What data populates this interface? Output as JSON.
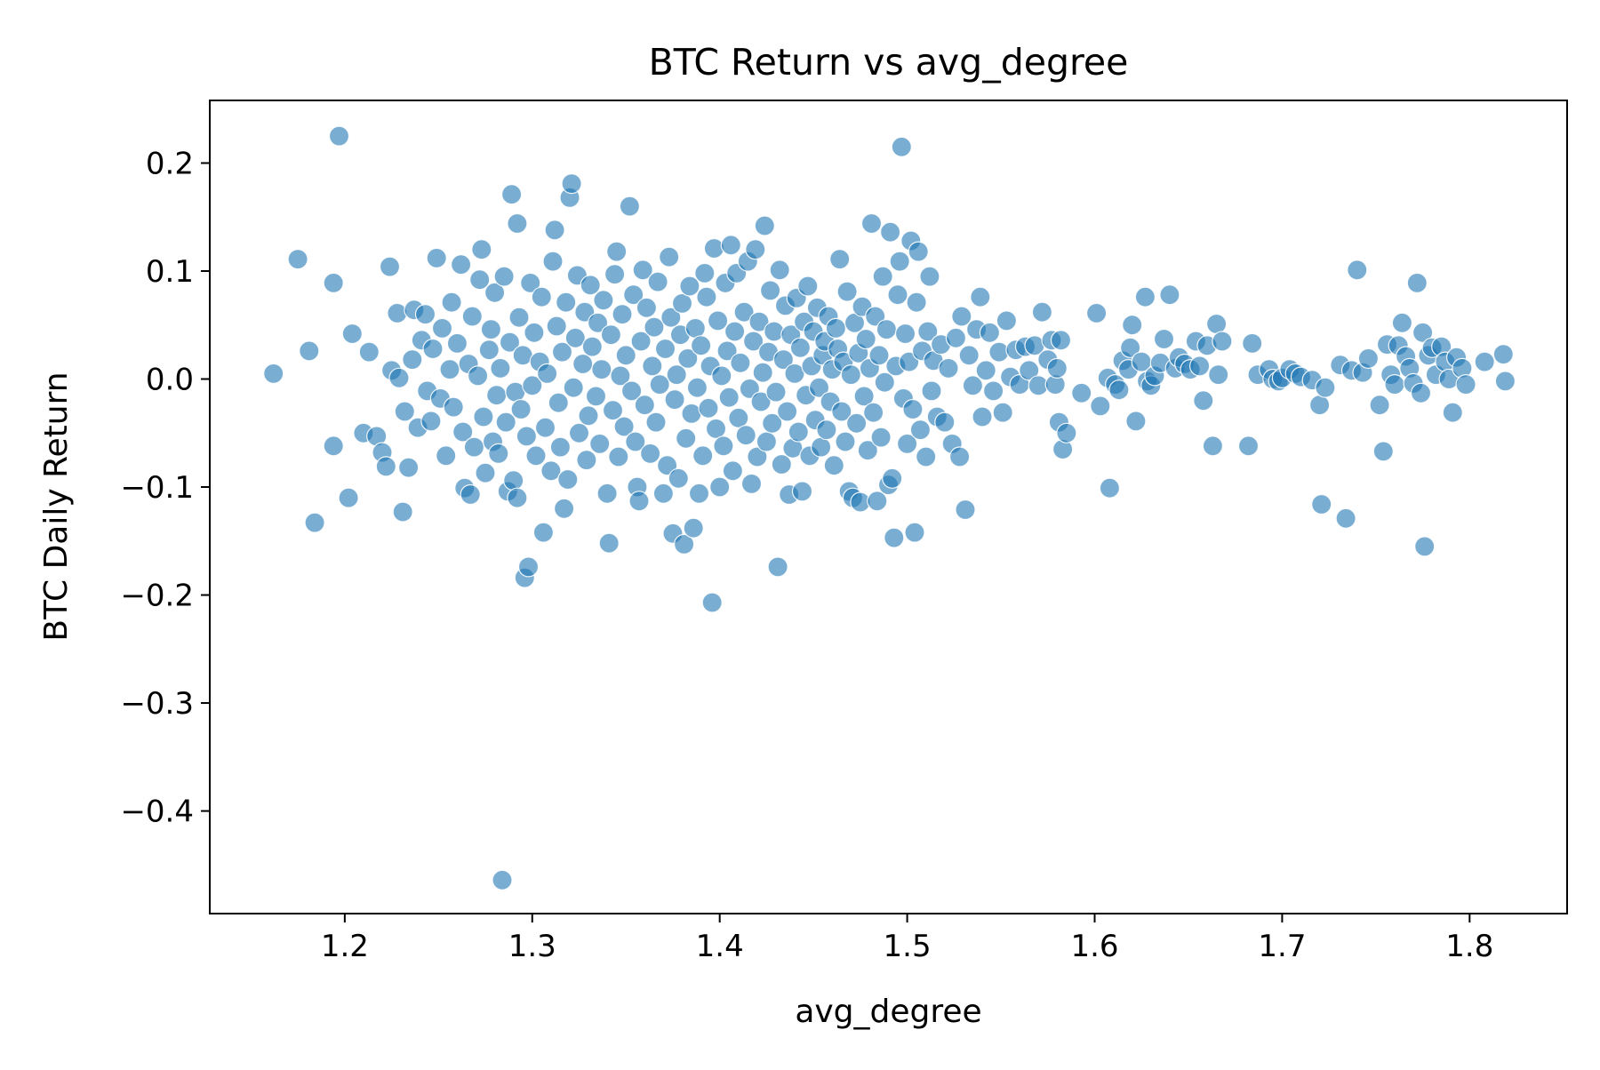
{
  "chart_data": {
    "type": "scatter",
    "title": "BTC Return vs avg_degree",
    "xlabel": "avg_degree",
    "ylabel": "BTC Daily Return",
    "xlim": [
      1.128,
      1.852
    ],
    "ylim": [
      -0.495,
      0.258
    ],
    "x_ticks": [
      {
        "value": 1.2,
        "label": "1.2"
      },
      {
        "value": 1.3,
        "label": "1.3"
      },
      {
        "value": 1.4,
        "label": "1.4"
      },
      {
        "value": 1.5,
        "label": "1.5"
      },
      {
        "value": 1.6,
        "label": "1.6"
      },
      {
        "value": 1.7,
        "label": "1.7"
      },
      {
        "value": 1.8,
        "label": "1.8"
      }
    ],
    "y_ticks": [
      {
        "value": 0.2,
        "label": "0.2"
      },
      {
        "value": 0.1,
        "label": "0.1"
      },
      {
        "value": 0.0,
        "label": "0.0"
      },
      {
        "value": -0.1,
        "label": "−0.1"
      },
      {
        "value": -0.2,
        "label": "−0.2"
      },
      {
        "value": -0.3,
        "label": "−0.3"
      },
      {
        "value": -0.4,
        "label": "−0.4"
      }
    ],
    "grid": false,
    "legend": "none",
    "marker_color": "#1f77b4",
    "marker_alpha": 0.6,
    "marker_edge_color": "#ffffff",
    "points": [
      [
        1.162,
        0.005
      ],
      [
        1.175,
        0.111
      ],
      [
        1.181,
        0.026
      ],
      [
        1.184,
        -0.133
      ],
      [
        1.194,
        0.089
      ],
      [
        1.194,
        -0.062
      ],
      [
        1.197,
        0.225
      ],
      [
        1.202,
        -0.11
      ],
      [
        1.204,
        0.042
      ],
      [
        1.21,
        -0.05
      ],
      [
        1.213,
        0.025
      ],
      [
        1.217,
        -0.053
      ],
      [
        1.22,
        -0.068
      ],
      [
        1.222,
        -0.081
      ],
      [
        1.224,
        0.104
      ],
      [
        1.225,
        0.008
      ],
      [
        1.228,
        0.061
      ],
      [
        1.229,
        0.001
      ],
      [
        1.231,
        -0.123
      ],
      [
        1.232,
        -0.03
      ],
      [
        1.234,
        -0.082
      ],
      [
        1.236,
        0.018
      ],
      [
        1.237,
        0.064
      ],
      [
        1.239,
        -0.045
      ],
      [
        1.241,
        0.036
      ],
      [
        1.243,
        0.06
      ],
      [
        1.244,
        -0.011
      ],
      [
        1.246,
        -0.039
      ],
      [
        1.247,
        0.028
      ],
      [
        1.249,
        0.112
      ],
      [
        1.251,
        -0.018
      ],
      [
        1.252,
        0.047
      ],
      [
        1.254,
        -0.071
      ],
      [
        1.256,
        0.009
      ],
      [
        1.257,
        0.071
      ],
      [
        1.258,
        -0.026
      ],
      [
        1.26,
        0.033
      ],
      [
        1.262,
        0.106
      ],
      [
        1.263,
        -0.049
      ],
      [
        1.264,
        -0.101
      ],
      [
        1.266,
        0.014
      ],
      [
        1.267,
        -0.107
      ],
      [
        1.268,
        0.058
      ],
      [
        1.269,
        -0.063
      ],
      [
        1.271,
        0.003
      ],
      [
        1.272,
        0.092
      ],
      [
        1.273,
        0.12
      ],
      [
        1.274,
        -0.035
      ],
      [
        1.275,
        -0.087
      ],
      [
        1.277,
        0.027
      ],
      [
        1.278,
        0.046
      ],
      [
        1.279,
        -0.058
      ],
      [
        1.28,
        0.08
      ],
      [
        1.281,
        -0.015
      ],
      [
        1.282,
        -0.069
      ],
      [
        1.283,
        0.01
      ],
      [
        1.284,
        -0.464
      ],
      [
        1.285,
        0.095
      ],
      [
        1.286,
        -0.04
      ],
      [
        1.287,
        -0.104
      ],
      [
        1.288,
        0.034
      ],
      [
        1.289,
        0.171
      ],
      [
        1.29,
        -0.094
      ],
      [
        1.291,
        -0.012
      ],
      [
        1.292,
        -0.11
      ],
      [
        1.292,
        0.144
      ],
      [
        1.293,
        0.057
      ],
      [
        1.294,
        -0.028
      ],
      [
        1.295,
        0.022
      ],
      [
        1.296,
        -0.184
      ],
      [
        1.297,
        -0.053
      ],
      [
        1.298,
        -0.174
      ],
      [
        1.299,
        0.089
      ],
      [
        1.3,
        -0.006
      ],
      [
        1.301,
        0.043
      ],
      [
        1.302,
        -0.071
      ],
      [
        1.304,
        0.016
      ],
      [
        1.305,
        0.076
      ],
      [
        1.306,
        -0.142
      ],
      [
        1.307,
        -0.045
      ],
      [
        1.308,
        0.005
      ],
      [
        1.31,
        -0.085
      ],
      [
        1.311,
        0.109
      ],
      [
        1.312,
        0.138
      ],
      [
        1.313,
        0.049
      ],
      [
        1.314,
        -0.022
      ],
      [
        1.315,
        -0.063
      ],
      [
        1.316,
        0.025
      ],
      [
        1.317,
        -0.12
      ],
      [
        1.318,
        0.071
      ],
      [
        1.319,
        -0.093
      ],
      [
        1.32,
        0.168
      ],
      [
        1.321,
        0.181
      ],
      [
        1.322,
        -0.008
      ],
      [
        1.323,
        0.038
      ],
      [
        1.324,
        0.096
      ],
      [
        1.325,
        -0.05
      ],
      [
        1.327,
        0.014
      ],
      [
        1.328,
        0.062
      ],
      [
        1.329,
        -0.075
      ],
      [
        1.33,
        -0.034
      ],
      [
        1.331,
        0.087
      ],
      [
        1.332,
        0.03
      ],
      [
        1.334,
        -0.016
      ],
      [
        1.335,
        0.052
      ],
      [
        1.336,
        -0.06
      ],
      [
        1.337,
        0.009
      ],
      [
        1.338,
        0.073
      ],
      [
        1.34,
        -0.106
      ],
      [
        1.341,
        -0.152
      ],
      [
        1.342,
        0.041
      ],
      [
        1.343,
        -0.029
      ],
      [
        1.344,
        0.097
      ],
      [
        1.345,
        0.118
      ],
      [
        1.346,
        -0.072
      ],
      [
        1.347,
        0.003
      ],
      [
        1.348,
        0.06
      ],
      [
        1.349,
        -0.044
      ],
      [
        1.35,
        0.022
      ],
      [
        1.352,
        0.16
      ],
      [
        1.353,
        -0.011
      ],
      [
        1.354,
        0.078
      ],
      [
        1.355,
        -0.058
      ],
      [
        1.356,
        -0.1
      ],
      [
        1.357,
        -0.113
      ],
      [
        1.358,
        0.035
      ],
      [
        1.359,
        0.101
      ],
      [
        1.36,
        -0.024
      ],
      [
        1.361,
        0.066
      ],
      [
        1.363,
        -0.069
      ],
      [
        1.364,
        0.012
      ],
      [
        1.365,
        0.048
      ],
      [
        1.366,
        -0.04
      ],
      [
        1.367,
        0.09
      ],
      [
        1.368,
        -0.005
      ],
      [
        1.37,
        -0.106
      ],
      [
        1.371,
        0.028
      ],
      [
        1.372,
        -0.08
      ],
      [
        1.373,
        0.113
      ],
      [
        1.374,
        0.057
      ],
      [
        1.375,
        -0.143
      ],
      [
        1.376,
        -0.019
      ],
      [
        1.377,
        0.004
      ],
      [
        1.378,
        -0.092
      ],
      [
        1.379,
        0.041
      ],
      [
        1.38,
        0.07
      ],
      [
        1.381,
        -0.153
      ],
      [
        1.382,
        -0.055
      ],
      [
        1.383,
        0.019
      ],
      [
        1.384,
        0.086
      ],
      [
        1.385,
        -0.032
      ],
      [
        1.386,
        -0.138
      ],
      [
        1.387,
        0.047
      ],
      [
        1.388,
        -0.008
      ],
      [
        1.389,
        -0.106
      ],
      [
        1.39,
        0.031
      ],
      [
        1.391,
        -0.071
      ],
      [
        1.392,
        0.098
      ],
      [
        1.393,
        0.076
      ],
      [
        1.394,
        -0.027
      ],
      [
        1.395,
        0.012
      ],
      [
        1.396,
        -0.207
      ],
      [
        1.397,
        0.121
      ],
      [
        1.398,
        -0.046
      ],
      [
        1.399,
        0.054
      ],
      [
        1.4,
        -0.1
      ],
      [
        1.401,
        0.003
      ],
      [
        1.402,
        -0.062
      ],
      [
        1.403,
        0.089
      ],
      [
        1.404,
        0.026
      ],
      [
        1.405,
        -0.017
      ],
      [
        1.406,
        0.124
      ],
      [
        1.407,
        -0.085
      ],
      [
        1.408,
        0.044
      ],
      [
        1.409,
        0.098
      ],
      [
        1.41,
        -0.036
      ],
      [
        1.411,
        0.015
      ],
      [
        1.413,
        0.062
      ],
      [
        1.414,
        -0.052
      ],
      [
        1.415,
        0.109
      ],
      [
        1.416,
        -0.009
      ],
      [
        1.417,
        -0.097
      ],
      [
        1.418,
        0.035
      ],
      [
        1.419,
        0.12
      ],
      [
        1.42,
        -0.072
      ],
      [
        1.421,
        0.053
      ],
      [
        1.422,
        -0.021
      ],
      [
        1.423,
        0.006
      ],
      [
        1.424,
        0.142
      ],
      [
        1.425,
        -0.058
      ],
      [
        1.426,
        0.025
      ],
      [
        1.427,
        0.082
      ],
      [
        1.428,
        -0.041
      ],
      [
        1.429,
        0.044
      ],
      [
        1.43,
        -0.012
      ],
      [
        1.431,
        -0.174
      ],
      [
        1.432,
        0.101
      ],
      [
        1.433,
        -0.079
      ],
      [
        1.434,
        0.018
      ],
      [
        1.435,
        0.068
      ],
      [
        1.436,
        -0.03
      ],
      [
        1.437,
        -0.107
      ],
      [
        1.438,
        0.041
      ],
      [
        1.439,
        -0.064
      ],
      [
        1.44,
        0.005
      ],
      [
        1.441,
        0.075
      ],
      [
        1.442,
        -0.049
      ],
      [
        1.443,
        0.029
      ],
      [
        1.444,
        -0.104
      ],
      [
        1.445,
        0.053
      ],
      [
        1.446,
        -0.015
      ],
      [
        1.447,
        0.086
      ],
      [
        1.448,
        -0.071
      ],
      [
        1.449,
        0.012
      ],
      [
        1.45,
        0.044
      ],
      [
        1.451,
        -0.038
      ],
      [
        1.452,
        0.066
      ],
      [
        1.453,
        -0.008
      ],
      [
        1.454,
        -0.063
      ],
      [
        1.455,
        0.022
      ],
      [
        1.456,
        0.035
      ],
      [
        1.457,
        -0.047
      ],
      [
        1.458,
        0.058
      ],
      [
        1.459,
        -0.021
      ],
      [
        1.46,
        0.009
      ],
      [
        1.461,
        -0.08
      ],
      [
        1.462,
        0.047
      ],
      [
        1.463,
        0.028
      ],
      [
        1.464,
        0.111
      ],
      [
        1.465,
        -0.03
      ],
      [
        1.466,
        0.016
      ],
      [
        1.467,
        -0.058
      ],
      [
        1.468,
        0.081
      ],
      [
        1.469,
        -0.104
      ],
      [
        1.47,
        0.004
      ],
      [
        1.471,
        -0.11
      ],
      [
        1.472,
        0.052
      ],
      [
        1.473,
        -0.041
      ],
      [
        1.474,
        0.024
      ],
      [
        1.475,
        -0.114
      ],
      [
        1.476,
        0.067
      ],
      [
        1.477,
        -0.016
      ],
      [
        1.478,
        0.037
      ],
      [
        1.479,
        -0.066
      ],
      [
        1.48,
        0.01
      ],
      [
        1.481,
        0.144
      ],
      [
        1.482,
        -0.031
      ],
      [
        1.483,
        0.058
      ],
      [
        1.484,
        -0.113
      ],
      [
        1.485,
        0.022
      ],
      [
        1.486,
        -0.054
      ],
      [
        1.487,
        0.095
      ],
      [
        1.488,
        -0.003
      ],
      [
        1.489,
        0.046
      ],
      [
        1.49,
        -0.098
      ],
      [
        1.491,
        0.136
      ],
      [
        1.492,
        -0.092
      ],
      [
        1.493,
        -0.147
      ],
      [
        1.494,
        0.012
      ],
      [
        1.495,
        0.078
      ],
      [
        1.496,
        0.109
      ],
      [
        1.497,
        0.215
      ],
      [
        1.498,
        -0.018
      ],
      [
        1.499,
        0.042
      ],
      [
        1.5,
        -0.06
      ],
      [
        1.501,
        0.016
      ],
      [
        1.502,
        0.128
      ],
      [
        1.503,
        -0.028
      ],
      [
        1.504,
        -0.142
      ],
      [
        1.505,
        0.071
      ],
      [
        1.506,
        0.118
      ],
      [
        1.507,
        -0.047
      ],
      [
        1.508,
        0.026
      ],
      [
        1.51,
        -0.072
      ],
      [
        1.511,
        0.044
      ],
      [
        1.512,
        0.095
      ],
      [
        1.513,
        -0.011
      ],
      [
        1.514,
        0.017
      ],
      [
        1.516,
        -0.035
      ],
      [
        1.518,
        0.032
      ],
      [
        1.52,
        -0.04
      ],
      [
        1.522,
        0.01
      ],
      [
        1.524,
        -0.06
      ],
      [
        1.526,
        0.038
      ],
      [
        1.528,
        -0.072
      ],
      [
        1.529,
        0.058
      ],
      [
        1.531,
        -0.121
      ],
      [
        1.533,
        0.022
      ],
      [
        1.535,
        -0.006
      ],
      [
        1.537,
        0.046
      ],
      [
        1.539,
        0.076
      ],
      [
        1.54,
        -0.035
      ],
      [
        1.542,
        0.008
      ],
      [
        1.544,
        0.043
      ],
      [
        1.546,
        -0.011
      ],
      [
        1.549,
        0.025
      ],
      [
        1.551,
        -0.031
      ],
      [
        1.553,
        0.054
      ],
      [
        1.555,
        0.002
      ],
      [
        1.558,
        0.027
      ],
      [
        1.56,
        -0.005
      ],
      [
        1.563,
        0.03
      ],
      [
        1.565,
        0.008
      ],
      [
        1.568,
        0.031
      ],
      [
        1.57,
        -0.006
      ],
      [
        1.572,
        0.062
      ],
      [
        1.575,
        0.018
      ],
      [
        1.577,
        0.036
      ],
      [
        1.579,
        -0.005
      ],
      [
        1.58,
        0.01
      ],
      [
        1.581,
        -0.04
      ],
      [
        1.582,
        0.036
      ],
      [
        1.583,
        -0.065
      ],
      [
        1.585,
        -0.05
      ],
      [
        1.593,
        -0.013
      ],
      [
        1.601,
        0.061
      ],
      [
        1.603,
        -0.025
      ],
      [
        1.607,
        0.001
      ],
      [
        1.608,
        -0.101
      ],
      [
        1.611,
        -0.005
      ],
      [
        1.613,
        -0.01
      ],
      [
        1.615,
        0.017
      ],
      [
        1.618,
        0.009
      ],
      [
        1.619,
        0.029
      ],
      [
        1.62,
        0.05
      ],
      [
        1.622,
        -0.039
      ],
      [
        1.625,
        0.016
      ],
      [
        1.627,
        0.076
      ],
      [
        1.628,
        -0.002
      ],
      [
        1.63,
        -0.006
      ],
      [
        1.632,
        0.003
      ],
      [
        1.635,
        0.015
      ],
      [
        1.637,
        0.037
      ],
      [
        1.64,
        0.078
      ],
      [
        1.643,
        0.01
      ],
      [
        1.645,
        0.02
      ],
      [
        1.648,
        0.014
      ],
      [
        1.651,
        0.009
      ],
      [
        1.654,
        0.035
      ],
      [
        1.656,
        0.012
      ],
      [
        1.658,
        -0.02
      ],
      [
        1.66,
        0.031
      ],
      [
        1.663,
        -0.062
      ],
      [
        1.665,
        0.051
      ],
      [
        1.666,
        0.004
      ],
      [
        1.668,
        0.035
      ],
      [
        1.682,
        -0.062
      ],
      [
        1.684,
        0.033
      ],
      [
        1.687,
        0.004
      ],
      [
        1.693,
        0.009
      ],
      [
        1.695,
        0.0
      ],
      [
        1.698,
        -0.002
      ],
      [
        1.7,
        0.001
      ],
      [
        1.704,
        0.009
      ],
      [
        1.707,
        0.005
      ],
      [
        1.71,
        0.002
      ],
      [
        1.716,
        -0.001
      ],
      [
        1.72,
        -0.024
      ],
      [
        1.721,
        -0.116
      ],
      [
        1.723,
        -0.008
      ],
      [
        1.731,
        0.013
      ],
      [
        1.734,
        -0.129
      ],
      [
        1.737,
        0.008
      ],
      [
        1.74,
        0.101
      ],
      [
        1.743,
        0.006
      ],
      [
        1.746,
        0.019
      ],
      [
        1.752,
        -0.024
      ],
      [
        1.754,
        -0.067
      ],
      [
        1.756,
        0.032
      ],
      [
        1.758,
        0.004
      ],
      [
        1.76,
        -0.005
      ],
      [
        1.762,
        0.031
      ],
      [
        1.764,
        0.052
      ],
      [
        1.766,
        0.021
      ],
      [
        1.768,
        0.01
      ],
      [
        1.77,
        -0.004
      ],
      [
        1.772,
        0.089
      ],
      [
        1.774,
        -0.013
      ],
      [
        1.775,
        0.043
      ],
      [
        1.776,
        -0.155
      ],
      [
        1.778,
        0.022
      ],
      [
        1.78,
        0.029
      ],
      [
        1.782,
        0.004
      ],
      [
        1.785,
        0.03
      ],
      [
        1.787,
        0.016
      ],
      [
        1.789,
        0.0
      ],
      [
        1.791,
        -0.031
      ],
      [
        1.793,
        0.02
      ],
      [
        1.796,
        0.01
      ],
      [
        1.798,
        -0.005
      ],
      [
        1.808,
        0.016
      ],
      [
        1.818,
        0.023
      ],
      [
        1.819,
        -0.002
      ]
    ]
  }
}
